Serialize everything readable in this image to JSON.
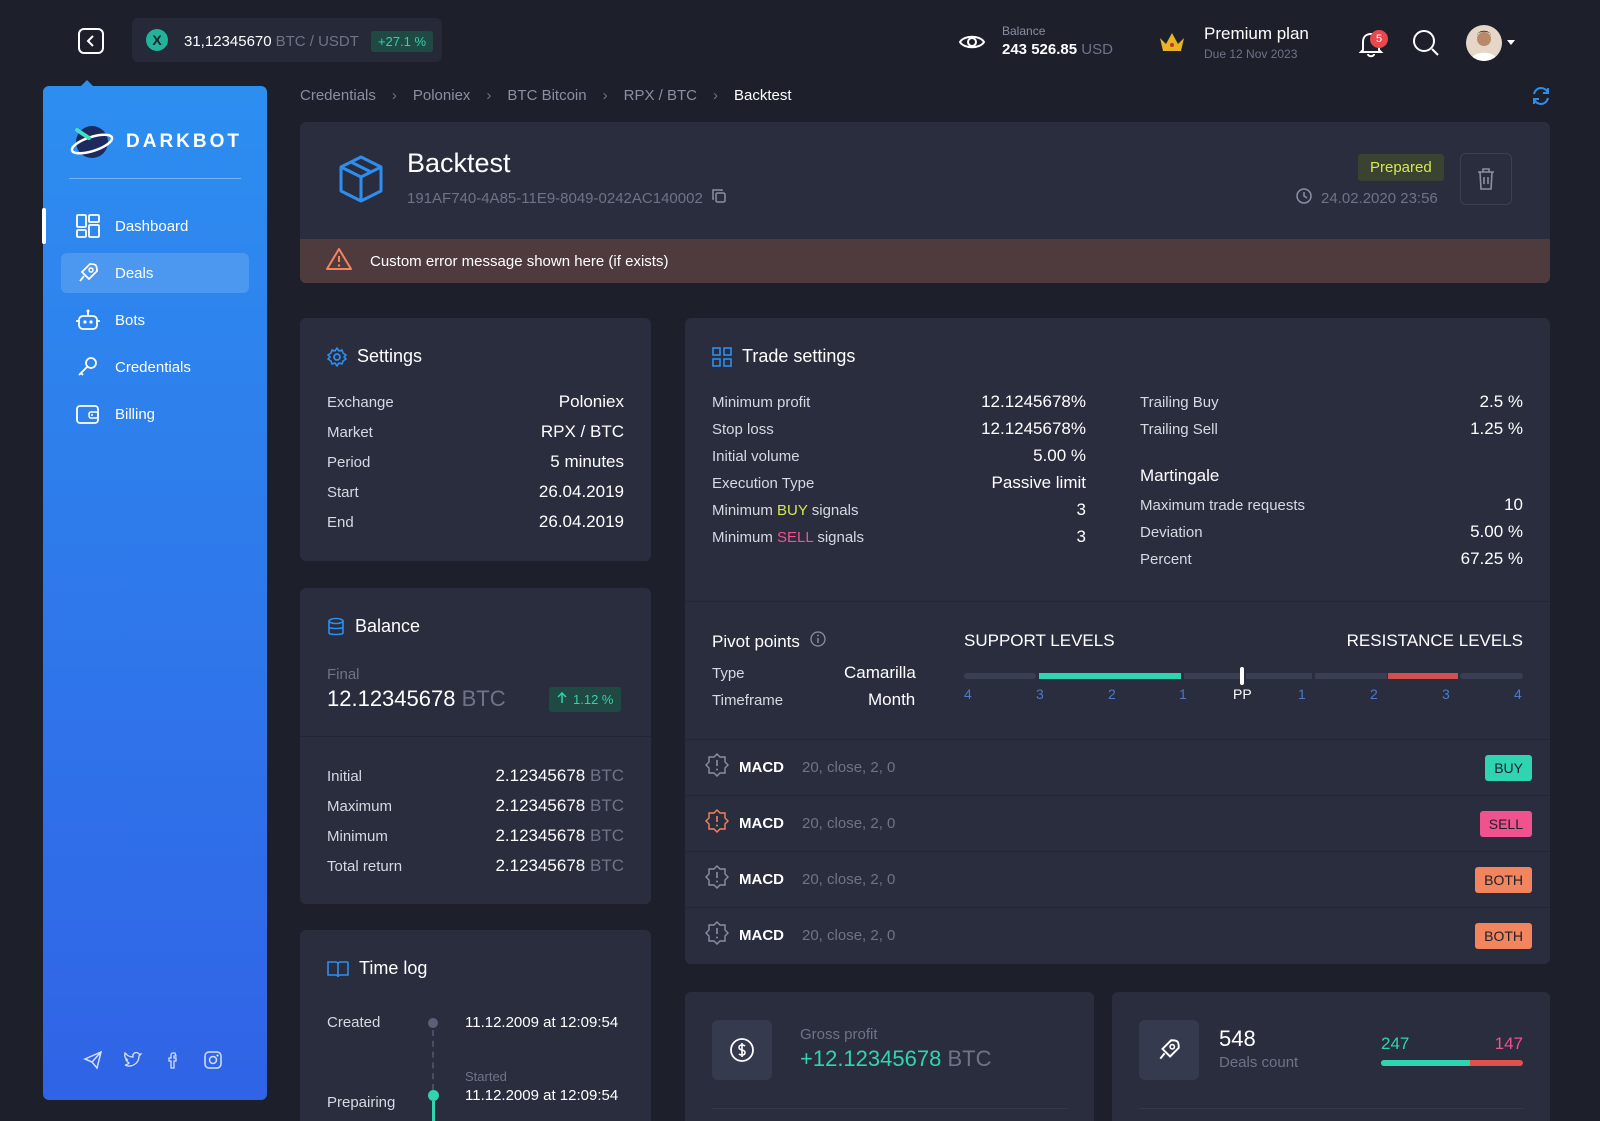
{
  "header": {
    "ticker": {
      "value": "31,12345670",
      "pair": "BTC / USDT",
      "change": "+27.1 %"
    },
    "balance": {
      "label": "Balance",
      "value": "243 526.85",
      "unit": "USD"
    },
    "plan": {
      "name": "Premium plan",
      "due": "Due 12 Nov 2023"
    },
    "notifications": "5"
  },
  "sidebar": {
    "brand": "DARKBOT",
    "items": [
      {
        "label": "Dashboard"
      },
      {
        "label": "Deals"
      },
      {
        "label": "Bots"
      },
      {
        "label": "Credentials"
      },
      {
        "label": "Billing"
      }
    ]
  },
  "breadcrumb": [
    "Credentials",
    "Poloniex",
    "BTC Bitcoin",
    "RPX / BTC",
    "Backtest"
  ],
  "backtest": {
    "title": "Backtest",
    "id": "191AF740-4A85-11E9-8049-0242AC140002",
    "status": "Prepared",
    "date": "24.02.2020 23:56",
    "error": "Custom error message shown here (if exists)"
  },
  "settings": {
    "title": "Settings",
    "rows": [
      {
        "label": "Exchange",
        "value": "Poloniex"
      },
      {
        "label": "Market",
        "value": "RPX / BTC"
      },
      {
        "label": "Period",
        "value": "5 minutes"
      },
      {
        "label": "Start",
        "value": "26.04.2019"
      },
      {
        "label": "End",
        "value": "26.04.2019"
      }
    ]
  },
  "balance": {
    "title": "Balance",
    "final_label": "Final",
    "final_value": "12.12345678",
    "unit": "BTC",
    "change": "1.12 %",
    "rows": [
      {
        "label": "Initial",
        "value": "2.12345678"
      },
      {
        "label": "Maximum",
        "value": "2.12345678"
      },
      {
        "label": "Minimum",
        "value": "2.12345678"
      },
      {
        "label": "Total return",
        "value": "2.12345678"
      }
    ]
  },
  "timelog": {
    "title": "Time log",
    "created_label": "Created",
    "created_value": "11.12.2009 at 12:09:54",
    "prep_label": "Prepairing",
    "started_label": "Started",
    "started_value": "11.12.2009 at 12:09:54"
  },
  "trade": {
    "title": "Trade settings",
    "left": [
      {
        "label": "Minimum profit",
        "value": "12.1245678%"
      },
      {
        "label": "Stop loss",
        "value": "12.1245678%"
      },
      {
        "label": "Initial volume",
        "value": "5.00 %"
      },
      {
        "label": "Execution Type",
        "value": "Passive limit"
      }
    ],
    "min_buy": {
      "pre": "Minimum ",
      "kw": "BUY",
      "post": " signals",
      "value": "3"
    },
    "min_sell": {
      "pre": "Minimum ",
      "kw": "SELL",
      "post": " signals",
      "value": "3"
    },
    "right": [
      {
        "label": "Trailing Buy",
        "value": "2.5 %"
      },
      {
        "label": "Trailing Sell",
        "value": "1.25 %"
      }
    ],
    "martingale_title": "Martingale",
    "martingale": [
      {
        "label": "Maximum trade requests",
        "value": "10"
      },
      {
        "label": "Deviation",
        "value": "5.00 %"
      },
      {
        "label": "Percent",
        "value": "67.25 %"
      }
    ]
  },
  "pivot": {
    "title": "Pivot points",
    "type_label": "Type",
    "type_value": "Camarilla",
    "tf_label": "Timeframe",
    "tf_value": "Month",
    "support": "SUPPORT LEVELS",
    "resistance": "RESISTANCE LEVELS",
    "levels": [
      "4",
      "3",
      "2",
      "1",
      "PP",
      "1",
      "2",
      "3",
      "4"
    ]
  },
  "signals": [
    {
      "name": "MACD",
      "params": "20, close, 2, 0",
      "tag": "BUY",
      "color": "#2fd5b0"
    },
    {
      "name": "MACD",
      "params": "20, close, 2, 0",
      "tag": "SELL",
      "color": "#f0528d"
    },
    {
      "name": "MACD",
      "params": "20, close, 2, 0",
      "tag": "BOTH",
      "color": "#f2845e"
    },
    {
      "name": "MACD",
      "params": "20, close, 2, 0",
      "tag": "BOTH",
      "color": "#f2845e"
    }
  ],
  "gross": {
    "label": "Gross profit",
    "value": "+12.12345678",
    "unit": "BTC"
  },
  "deals": {
    "count": "548",
    "label": "Deals count",
    "win": "247",
    "loss": "147"
  },
  "colors": {
    "accent": "#2d8ef0",
    "green": "#2fd5b0",
    "red": "#e0504d",
    "orange": "#f2845e"
  }
}
